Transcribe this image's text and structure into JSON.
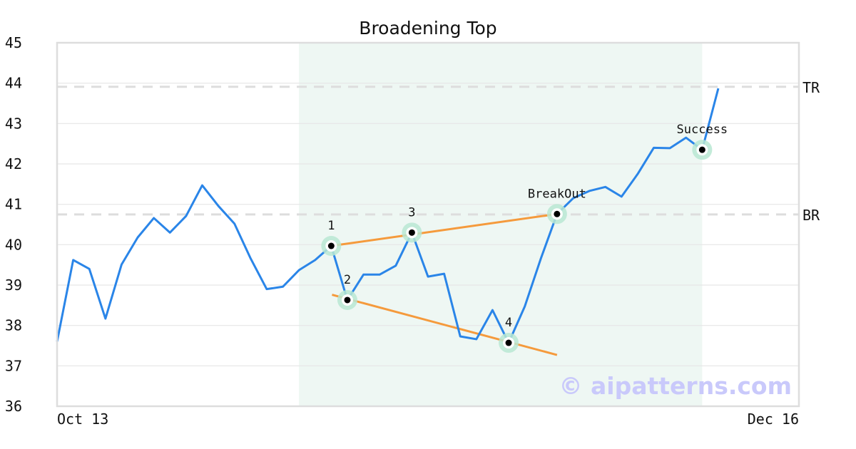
{
  "chart_data": {
    "type": "line",
    "title": "Broadening Top",
    "xlabel": "",
    "ylabel": "",
    "ylim": [
      36,
      45
    ],
    "xlim": [
      0,
      46
    ],
    "y_ticks": [
      "36",
      "37",
      "38",
      "39",
      "40",
      "41",
      "42",
      "43",
      "44",
      "45"
    ],
    "x_tick_labels": [
      {
        "index": 0,
        "label": "Oct 13"
      },
      {
        "index": 46,
        "label": "Dec 16"
      }
    ],
    "grid": true,
    "series": [
      {
        "color": "#2a85e8",
        "values": [
          37.6,
          39.62,
          39.4,
          38.17,
          39.51,
          40.18,
          40.66,
          40.3,
          40.71,
          41.47,
          40.96,
          40.52,
          39.66,
          38.9,
          38.96,
          39.37,
          39.62,
          39.97,
          38.63,
          39.26,
          39.26,
          39.48,
          40.3,
          39.21,
          39.28,
          37.73,
          37.66,
          38.38,
          37.57,
          38.47,
          39.66,
          40.76,
          41.15,
          41.33,
          41.43,
          41.19,
          41.75,
          42.4,
          42.39,
          42.65,
          42.35,
          43.87
        ]
      }
    ],
    "shaded_region": {
      "from_index": 15,
      "to_index": 40,
      "color": "#eef7f3"
    },
    "levels": [
      {
        "label": "TR",
        "value": 43.91,
        "color": "#dddddd"
      },
      {
        "label": "BR",
        "value": 40.75,
        "color": "#dddddd"
      }
    ],
    "trendlines": [
      {
        "from": [
          17,
          39.97
        ],
        "to": [
          31,
          40.76
        ],
        "color": "#f59a3c"
      },
      {
        "from": [
          17.05,
          38.76
        ],
        "to": [
          31,
          37.27
        ],
        "color": "#f59a3c"
      }
    ],
    "markers": [
      {
        "index": 17,
        "value": 39.97,
        "label": "1"
      },
      {
        "index": 18,
        "value": 38.63,
        "label": "2"
      },
      {
        "index": 22,
        "value": 40.3,
        "label": "3"
      },
      {
        "index": 28,
        "value": 37.57,
        "label": "4"
      },
      {
        "index": 31,
        "value": 40.76,
        "label": "BreakOut"
      },
      {
        "index": 40,
        "value": 42.35,
        "label": "Success"
      }
    ],
    "watermark": "© aipatterns.com"
  }
}
